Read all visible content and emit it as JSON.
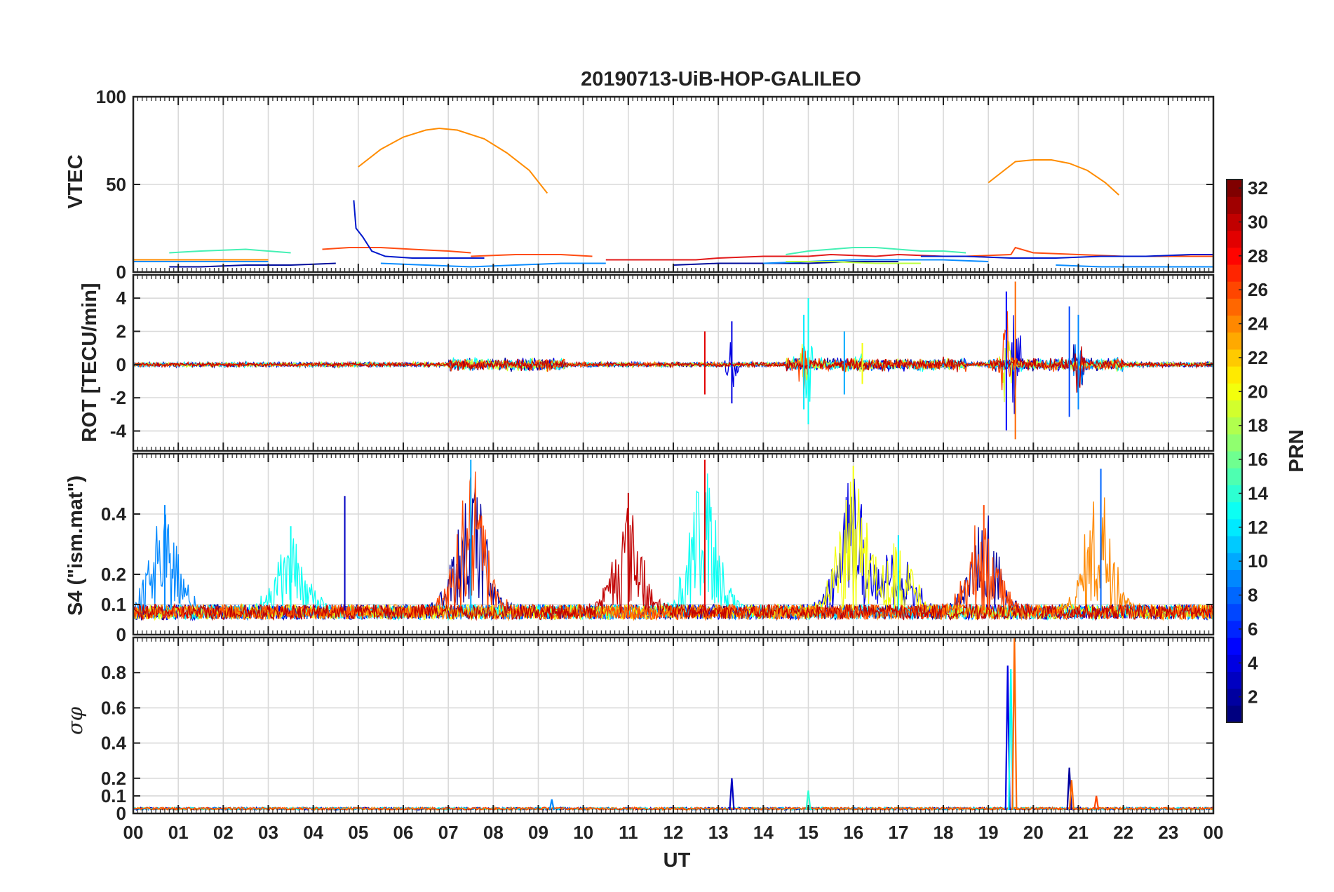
{
  "chart_data": {
    "type": "line",
    "title": "20190713-UiB-HOP-GALILEO",
    "xlabel": "UT",
    "x_tick_labels": [
      "00",
      "01",
      "02",
      "03",
      "04",
      "05",
      "06",
      "07",
      "08",
      "09",
      "10",
      "11",
      "12",
      "13",
      "14",
      "15",
      "16",
      "17",
      "18",
      "19",
      "20",
      "21",
      "22",
      "23",
      "00"
    ],
    "xlim": [
      0,
      24
    ],
    "grid": true,
    "colorbar": {
      "label": "PRN",
      "range": [
        1,
        32
      ],
      "tick_values": [
        2,
        4,
        6,
        8,
        10,
        12,
        14,
        16,
        18,
        20,
        22,
        24,
        26,
        28,
        30,
        32
      ],
      "tick_labels": [
        "2",
        "4",
        "6",
        "8",
        "10",
        "12",
        "14",
        "16",
        "18",
        "20",
        "22",
        "24",
        "26",
        "28",
        "30",
        "32"
      ],
      "colormap": "jet"
    },
    "panels": [
      {
        "id": "vtec",
        "ylabel": "VTEC",
        "ylim": [
          0,
          100
        ],
        "y_ticks": [
          0,
          50,
          100
        ],
        "y_tick_labels": [
          "0",
          "50",
          "100"
        ],
        "series": [
          {
            "prn": 24,
            "color": "#ff8c00",
            "points": [
              [
                5.0,
                60
              ],
              [
                5.5,
                70
              ],
              [
                6.0,
                77
              ],
              [
                6.5,
                81
              ],
              [
                6.8,
                82
              ],
              [
                7.2,
                81
              ],
              [
                7.8,
                76
              ],
              [
                8.3,
                68
              ],
              [
                8.8,
                58
              ],
              [
                9.2,
                45
              ]
            ]
          },
          {
            "prn": 24,
            "color": "#ff8c00",
            "points": [
              [
                19.0,
                51
              ],
              [
                19.3,
                57
              ],
              [
                19.6,
                63
              ],
              [
                20.0,
                64
              ],
              [
                20.4,
                64
              ],
              [
                20.8,
                62
              ],
              [
                21.2,
                58
              ],
              [
                21.6,
                51
              ],
              [
                21.9,
                44
              ]
            ]
          },
          {
            "prn": 13,
            "color": "#44f0b4",
            "points": [
              [
                0.8,
                11
              ],
              [
                1.5,
                12
              ],
              [
                2.5,
                13
              ],
              [
                3.5,
                11
              ]
            ]
          },
          {
            "prn": 13,
            "color": "#44f0b4",
            "points": [
              [
                14.5,
                10
              ],
              [
                15.0,
                12
              ],
              [
                15.5,
                13
              ],
              [
                16.0,
                14
              ],
              [
                16.5,
                14
              ],
              [
                17.0,
                13
              ],
              [
                17.5,
                12
              ],
              [
                18.0,
                12
              ],
              [
                18.5,
                11
              ]
            ]
          },
          {
            "prn": 26,
            "color": "#ff4c12",
            "points": [
              [
                4.2,
                13
              ],
              [
                4.8,
                14
              ],
              [
                5.5,
                14
              ],
              [
                6.2,
                13
              ],
              [
                7.0,
                12
              ],
              [
                7.5,
                11
              ]
            ]
          },
          {
            "prn": 26,
            "color": "#ff4c12",
            "points": [
              [
                7.5,
                9
              ],
              [
                8.5,
                10
              ],
              [
                9.5,
                10
              ],
              [
                10.2,
                9
              ]
            ]
          },
          {
            "prn": 26,
            "color": "#ff4c12",
            "points": [
              [
                18.5,
                9
              ],
              [
                19.5,
                10
              ],
              [
                19.6,
                14
              ],
              [
                20.0,
                11
              ],
              [
                21.0,
                10
              ],
              [
                22.0,
                9
              ],
              [
                23.0,
                9
              ],
              [
                24.0,
                9
              ]
            ]
          },
          {
            "prn": 30,
            "color": "#e21a1a",
            "points": [
              [
                10.5,
                7
              ],
              [
                11.5,
                7
              ],
              [
                12.5,
                7
              ],
              [
                13.0,
                8
              ],
              [
                14.0,
                9
              ],
              [
                15.0,
                9
              ],
              [
                15.5,
                10
              ],
              [
                16.5,
                9
              ],
              [
                17.0,
                10
              ],
              [
                18.0,
                9
              ]
            ]
          },
          {
            "prn": 3,
            "color": "#0018cc",
            "points": [
              [
                4.9,
                41
              ],
              [
                4.95,
                25
              ],
              [
                5.1,
                20
              ],
              [
                5.3,
                12
              ],
              [
                5.6,
                9
              ],
              [
                6.2,
                8
              ],
              [
                7.0,
                8
              ],
              [
                7.8,
                8
              ]
            ]
          },
          {
            "prn": 3,
            "color": "#0018cc",
            "points": [
              [
                17.5,
                9
              ],
              [
                18.5,
                9
              ],
              [
                19.5,
                8
              ],
              [
                20.5,
                8
              ],
              [
                21.5,
                9
              ],
              [
                22.5,
                9
              ],
              [
                23.5,
                10
              ],
              [
                24.0,
                10
              ]
            ]
          },
          {
            "prn": 2,
            "color": "#000c9c",
            "points": [
              [
                0.8,
                3
              ],
              [
                1.5,
                3
              ],
              [
                2.5,
                4
              ],
              [
                3.5,
                4
              ],
              [
                4.5,
                5
              ]
            ]
          },
          {
            "prn": 2,
            "color": "#000c9c",
            "points": [
              [
                12.0,
                4
              ],
              [
                13.0,
                5
              ],
              [
                14.0,
                5
              ],
              [
                15.0,
                5
              ],
              [
                16.0,
                6
              ],
              [
                17.0,
                6
              ]
            ]
          },
          {
            "prn": 9,
            "color": "#0a8cff",
            "points": [
              [
                0.0,
                6
              ],
              [
                1.0,
                6
              ],
              [
                2.0,
                6
              ],
              [
                3.0,
                6
              ]
            ]
          },
          {
            "prn": 9,
            "color": "#0a8cff",
            "points": [
              [
                5.5,
                5
              ],
              [
                6.5,
                4
              ],
              [
                7.5,
                3
              ],
              [
                8.5,
                4
              ],
              [
                9.5,
                5
              ],
              [
                10.5,
                5
              ]
            ]
          },
          {
            "prn": 9,
            "color": "#0a8cff",
            "points": [
              [
                14.0,
                5
              ],
              [
                15.0,
                6
              ],
              [
                16.0,
                7
              ],
              [
                17.0,
                7
              ],
              [
                18.0,
                7
              ],
              [
                19.0,
                6
              ]
            ]
          },
          {
            "prn": 9,
            "color": "#0a8cff",
            "points": [
              [
                20.5,
                4
              ],
              [
                21.5,
                3
              ],
              [
                22.5,
                3
              ],
              [
                23.5,
                3
              ],
              [
                24.0,
                3
              ]
            ]
          },
          {
            "prn": 24,
            "color": "#ff8c00",
            "points": [
              [
                0.0,
                7
              ],
              [
                1.0,
                7
              ],
              [
                2.0,
                7
              ],
              [
                3.0,
                7
              ]
            ]
          },
          {
            "prn": 18,
            "color": "#b8ff3e",
            "points": [
              [
                14.5,
                6
              ],
              [
                15.5,
                6
              ],
              [
                16.5,
                5
              ],
              [
                17.5,
                5
              ]
            ]
          }
        ]
      },
      {
        "id": "rot",
        "ylabel": "ROT [TECU/min]",
        "ylim": [
          -5.2,
          5.4
        ],
        "y_ticks": [
          -4,
          -2,
          0,
          2,
          4
        ],
        "y_tick_labels": [
          "-4",
          "-2",
          "0",
          "2",
          "4"
        ],
        "bursts": [
          {
            "prn": 13,
            "x": 15.0,
            "amp": 4.0
          },
          {
            "prn": 12,
            "x": 14.9,
            "amp": 3.0
          },
          {
            "prn": 4,
            "x": 13.3,
            "amp": 2.6
          },
          {
            "prn": 29,
            "x": 12.7,
            "amp": 2.0
          },
          {
            "prn": 5,
            "x": 19.4,
            "amp": 4.4
          },
          {
            "prn": 25,
            "x": 19.6,
            "amp": 5.0
          },
          {
            "prn": 7,
            "x": 20.8,
            "amp": 3.5
          },
          {
            "prn": 9,
            "x": 21.0,
            "amp": 3.0
          },
          {
            "prn": 10,
            "x": 15.8,
            "amp": 2.0
          },
          {
            "prn": 20,
            "x": 16.2,
            "amp": 1.3
          }
        ]
      },
      {
        "id": "s4",
        "ylabel": "S4 (\"ism.mat\")",
        "ylim": [
          0,
          0.6
        ],
        "y_ticks": [
          0,
          0.1,
          0.2,
          0.4
        ],
        "y_tick_labels": [
          "0",
          "0.1",
          "0.2",
          "0.4"
        ],
        "peaks": [
          {
            "prn": 9,
            "x": 0.7,
            "amp": 0.43
          },
          {
            "prn": 3,
            "x": 4.7,
            "amp": 0.46
          },
          {
            "prn": 10,
            "x": 7.5,
            "amp": 0.58
          },
          {
            "prn": 30,
            "x": 11.0,
            "amp": 0.47
          },
          {
            "prn": 29,
            "x": 12.7,
            "amp": 0.58
          },
          {
            "prn": 20,
            "x": 16.0,
            "amp": 0.56
          },
          {
            "prn": 26,
            "x": 18.9,
            "amp": 0.43
          },
          {
            "prn": 8,
            "x": 21.5,
            "amp": 0.55
          },
          {
            "prn": 13,
            "x": 3.5,
            "amp": 0.36
          },
          {
            "prn": 12,
            "x": 17.0,
            "amp": 0.33
          }
        ]
      },
      {
        "id": "sigma",
        "ylabel": "σφ",
        "ylim": [
          0,
          1.0
        ],
        "y_ticks": [
          0,
          0.1,
          0.2,
          0.4,
          0.6,
          0.8
        ],
        "y_tick_labels": [
          "0",
          "0.1",
          "0.2",
          "0.4",
          "0.6",
          "0.8"
        ],
        "spikes": [
          {
            "prn": 4,
            "x": 19.43,
            "amp": 0.84
          },
          {
            "prn": 13,
            "x": 19.5,
            "amp": 0.82
          },
          {
            "prn": 25,
            "x": 19.58,
            "amp": 1.0
          },
          {
            "prn": 3,
            "x": 13.3,
            "amp": 0.2
          },
          {
            "prn": 2,
            "x": 20.8,
            "amp": 0.26
          },
          {
            "prn": 25,
            "x": 20.85,
            "amp": 0.19
          },
          {
            "prn": 14,
            "x": 15.0,
            "amp": 0.13
          },
          {
            "prn": 26,
            "x": 21.4,
            "amp": 0.1
          },
          {
            "prn": 9,
            "x": 9.3,
            "amp": 0.08
          }
        ]
      }
    ]
  }
}
